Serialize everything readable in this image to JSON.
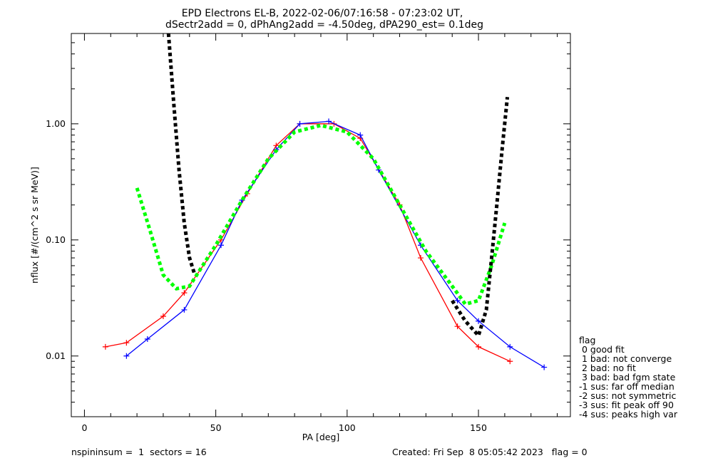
{
  "header": {
    "title_line1": "EPD Electrons EL-B, 2022-02-06/07:16:58 - 07:23:02 UT,",
    "title_line2": "dSectr2add = 0, dPhAng2add = -4.50deg, dPA290_est=   0.1deg"
  },
  "footer": {
    "left": "nspininsum =  1  sectors = 16",
    "right": "Created: Fri Sep  8 05:05:42 2023   flag = 0"
  },
  "legend": {
    "title": "flag",
    "entries": [
      " 0 good fit",
      " 1 bad: not converge",
      " 2 bad: no fit",
      " 3 bad: bad fgm state",
      "-1 sus: far off median",
      "-2 sus: not symmetric",
      "-3 sus: fit peak off 90",
      "-4 sus: peaks high var"
    ]
  },
  "chart_data": {
    "type": "line",
    "xlabel": "PA [deg]",
    "ylabel": "nflux [#/(cm^2 s sr MeV)]",
    "xlim": [
      -5,
      185
    ],
    "ylim": [
      0.003,
      6.0
    ],
    "yscale": "log",
    "x_ticks": [
      0,
      50,
      100,
      150
    ],
    "x_tick_labels": [
      "0",
      "50",
      "100",
      "150"
    ],
    "y_ticks": [
      0.01,
      0.1,
      1.0
    ],
    "y_tick_labels": [
      "0.01",
      "0.10",
      "1.00"
    ],
    "colors": {
      "red_series": "#ff0000",
      "blue_series": "#0000ff",
      "green_fit": "#00ff00",
      "black_fit": "#000000"
    },
    "series": [
      {
        "color": "#ff0000",
        "x": [
          8,
          16,
          30,
          38,
          52,
          62,
          73,
          82,
          95,
          105,
          120,
          128,
          142,
          150,
          162
        ],
        "y": [
          0.012,
          0.013,
          0.022,
          0.035,
          0.1,
          0.25,
          0.65,
          1.0,
          1.0,
          0.75,
          0.2,
          0.07,
          0.018,
          0.012,
          0.009
        ]
      },
      {
        "color": "#0000ff",
        "x": [
          16,
          24,
          38,
          52,
          60,
          73,
          82,
          93,
          105,
          112,
          128,
          142,
          150,
          162,
          175
        ],
        "y": [
          0.01,
          0.014,
          0.025,
          0.09,
          0.22,
          0.6,
          1.0,
          1.05,
          0.8,
          0.4,
          0.09,
          0.03,
          0.02,
          0.012,
          0.008
        ]
      },
      {
        "color": "#00ff00",
        "x": [
          20,
          25,
          30,
          35,
          40,
          50,
          60,
          70,
          80,
          90,
          100,
          110,
          120,
          130,
          140,
          145,
          150,
          155,
          160
        ],
        "y": [
          0.28,
          0.12,
          0.05,
          0.038,
          0.04,
          0.09,
          0.22,
          0.5,
          0.85,
          0.97,
          0.85,
          0.5,
          0.2,
          0.08,
          0.04,
          0.028,
          0.03,
          0.06,
          0.14
        ]
      },
      {
        "color": "#000000",
        "x": [
          32,
          34,
          36,
          38,
          40,
          42
        ],
        "y": [
          6.0,
          1.5,
          0.4,
          0.14,
          0.07,
          0.05
        ]
      },
      {
        "color": "#000000",
        "x": [
          140,
          145,
          150,
          153,
          155,
          157,
          159,
          161
        ],
        "y": [
          0.03,
          0.02,
          0.015,
          0.025,
          0.07,
          0.2,
          0.6,
          1.7
        ]
      }
    ]
  }
}
